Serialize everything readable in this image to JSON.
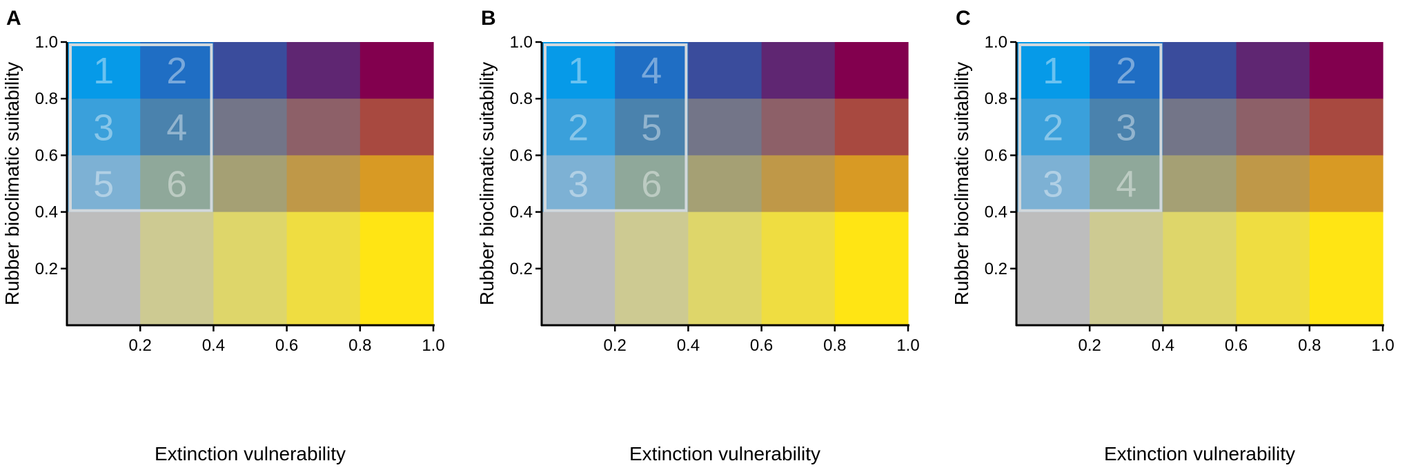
{
  "chart_data": [
    {
      "type": "heatmap",
      "panel": "A",
      "xlabel": "Extinction vulnerability",
      "ylabel": "Rubber bioclimatic suitability",
      "xlim": [
        0,
        1
      ],
      "ylim": [
        0,
        1
      ],
      "x_ticks": [
        "0.2",
        "0.4",
        "0.6",
        "0.8",
        "1.0"
      ],
      "y_ticks": [
        "0.2",
        "0.4",
        "0.6",
        "0.8",
        "1.0"
      ],
      "x_bins": [
        0,
        0.2,
        0.4,
        0.6,
        0.8,
        1.0
      ],
      "y_bins": [
        0,
        0.4,
        0.6,
        0.8,
        1.0
      ],
      "highlight_region": {
        "x": [
          0,
          0.4
        ],
        "y": [
          0.4,
          1.0
        ]
      },
      "priority_labels": [
        [
          "1",
          "2"
        ],
        [
          "3",
          "4"
        ],
        [
          "5",
          "6"
        ]
      ]
    },
    {
      "type": "heatmap",
      "panel": "B",
      "xlabel": "Extinction vulnerability",
      "ylabel": "Rubber bioclimatic suitability",
      "xlim": [
        0,
        1
      ],
      "ylim": [
        0,
        1
      ],
      "x_ticks": [
        "0.2",
        "0.4",
        "0.6",
        "0.8",
        "1.0"
      ],
      "y_ticks": [
        "0.2",
        "0.4",
        "0.6",
        "0.8",
        "1.0"
      ],
      "x_bins": [
        0,
        0.2,
        0.4,
        0.6,
        0.8,
        1.0
      ],
      "y_bins": [
        0,
        0.4,
        0.6,
        0.8,
        1.0
      ],
      "highlight_region": {
        "x": [
          0,
          0.4
        ],
        "y": [
          0.4,
          1.0
        ]
      },
      "priority_labels": [
        [
          "1",
          "4"
        ],
        [
          "2",
          "5"
        ],
        [
          "3",
          "6"
        ]
      ]
    },
    {
      "type": "heatmap",
      "panel": "C",
      "xlabel": "Extinction vulnerability",
      "ylabel": "Rubber bioclimatic suitability",
      "xlim": [
        0,
        1
      ],
      "ylim": [
        0,
        1
      ],
      "x_ticks": [
        "0.2",
        "0.4",
        "0.6",
        "0.8",
        "1.0"
      ],
      "y_ticks": [
        "0.2",
        "0.4",
        "0.6",
        "0.8",
        "1.0"
      ],
      "x_bins": [
        0,
        0.2,
        0.4,
        0.6,
        0.8,
        1.0
      ],
      "y_bins": [
        0,
        0.4,
        0.6,
        0.8,
        1.0
      ],
      "highlight_region": {
        "x": [
          0,
          0.4
        ],
        "y": [
          0.4,
          1.0
        ]
      },
      "priority_labels": [
        [
          "1",
          "2"
        ],
        [
          "2",
          "3"
        ],
        [
          "3",
          "4"
        ]
      ]
    }
  ],
  "palette": [
    [
      "#069AE8",
      "#1F6EC4",
      "#3A4C9C",
      "#5F2672",
      "#82004E"
    ],
    [
      "#3AA0DB",
      "#4A82AD",
      "#737588",
      "#8D6068",
      "#A84940"
    ],
    [
      "#7DB1D4",
      "#8FA89A",
      "#A5A074",
      "#BF9848",
      "#D89A24"
    ],
    [
      "#BDBDBD",
      "#CDCA92",
      "#DED66A",
      "#EFDD41",
      "#FFE514"
    ]
  ],
  "highlight_color": "#D2D8DC"
}
